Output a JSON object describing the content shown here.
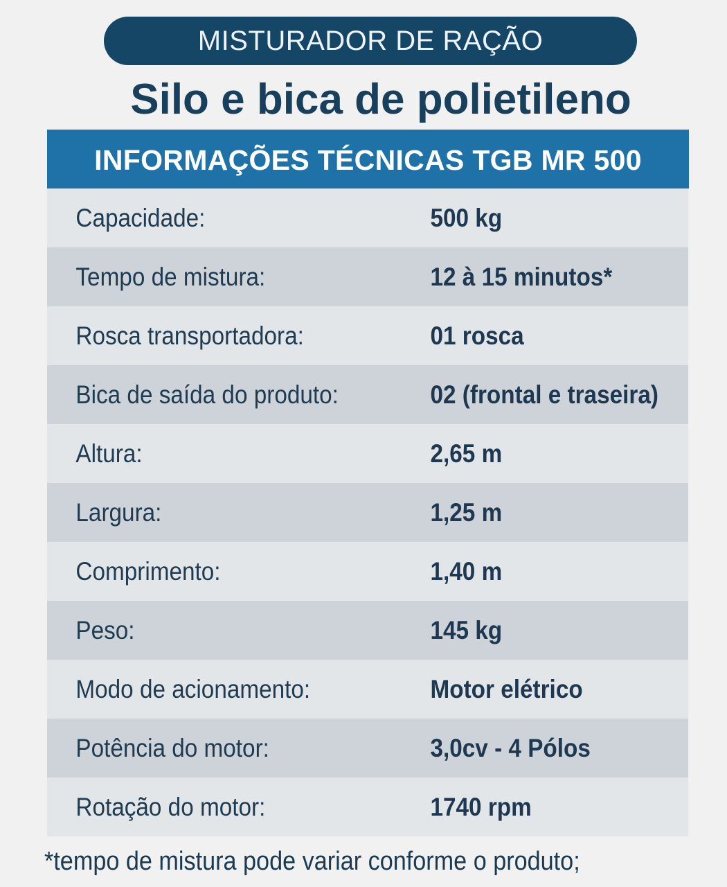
{
  "banner": {
    "label": "MISTURADOR DE RAÇÃO"
  },
  "subtitle": "Silo e bica de polietileno",
  "table": {
    "header": "INFORMAÇÕES TÉCNICAS TGB MR 500",
    "rows": [
      {
        "label": "Capacidade:",
        "value": "500 kg"
      },
      {
        "label": "Tempo de mistura:",
        "value": "12 à 15 minutos*"
      },
      {
        "label": "Rosca transportadora:",
        "value": "01 rosca"
      },
      {
        "label": "Bica de saída do produto:",
        "value": "02 (frontal e traseira)"
      },
      {
        "label": "Altura:",
        "value": "2,65 m"
      },
      {
        "label": "Largura:",
        "value": "1,25 m"
      },
      {
        "label": "Comprimento:",
        "value": "1,40 m"
      },
      {
        "label": "Peso:",
        "value": "145 kg"
      },
      {
        "label": "Modo de acionamento:",
        "value": "Motor elétrico"
      },
      {
        "label": "Potência do motor:",
        "value": "3,0cv - 4 Pólos"
      },
      {
        "label": "Rotação do motor:",
        "value": "1740 rpm"
      }
    ]
  },
  "footnote": "*tempo de mistura pode variar conforme o produto;"
}
